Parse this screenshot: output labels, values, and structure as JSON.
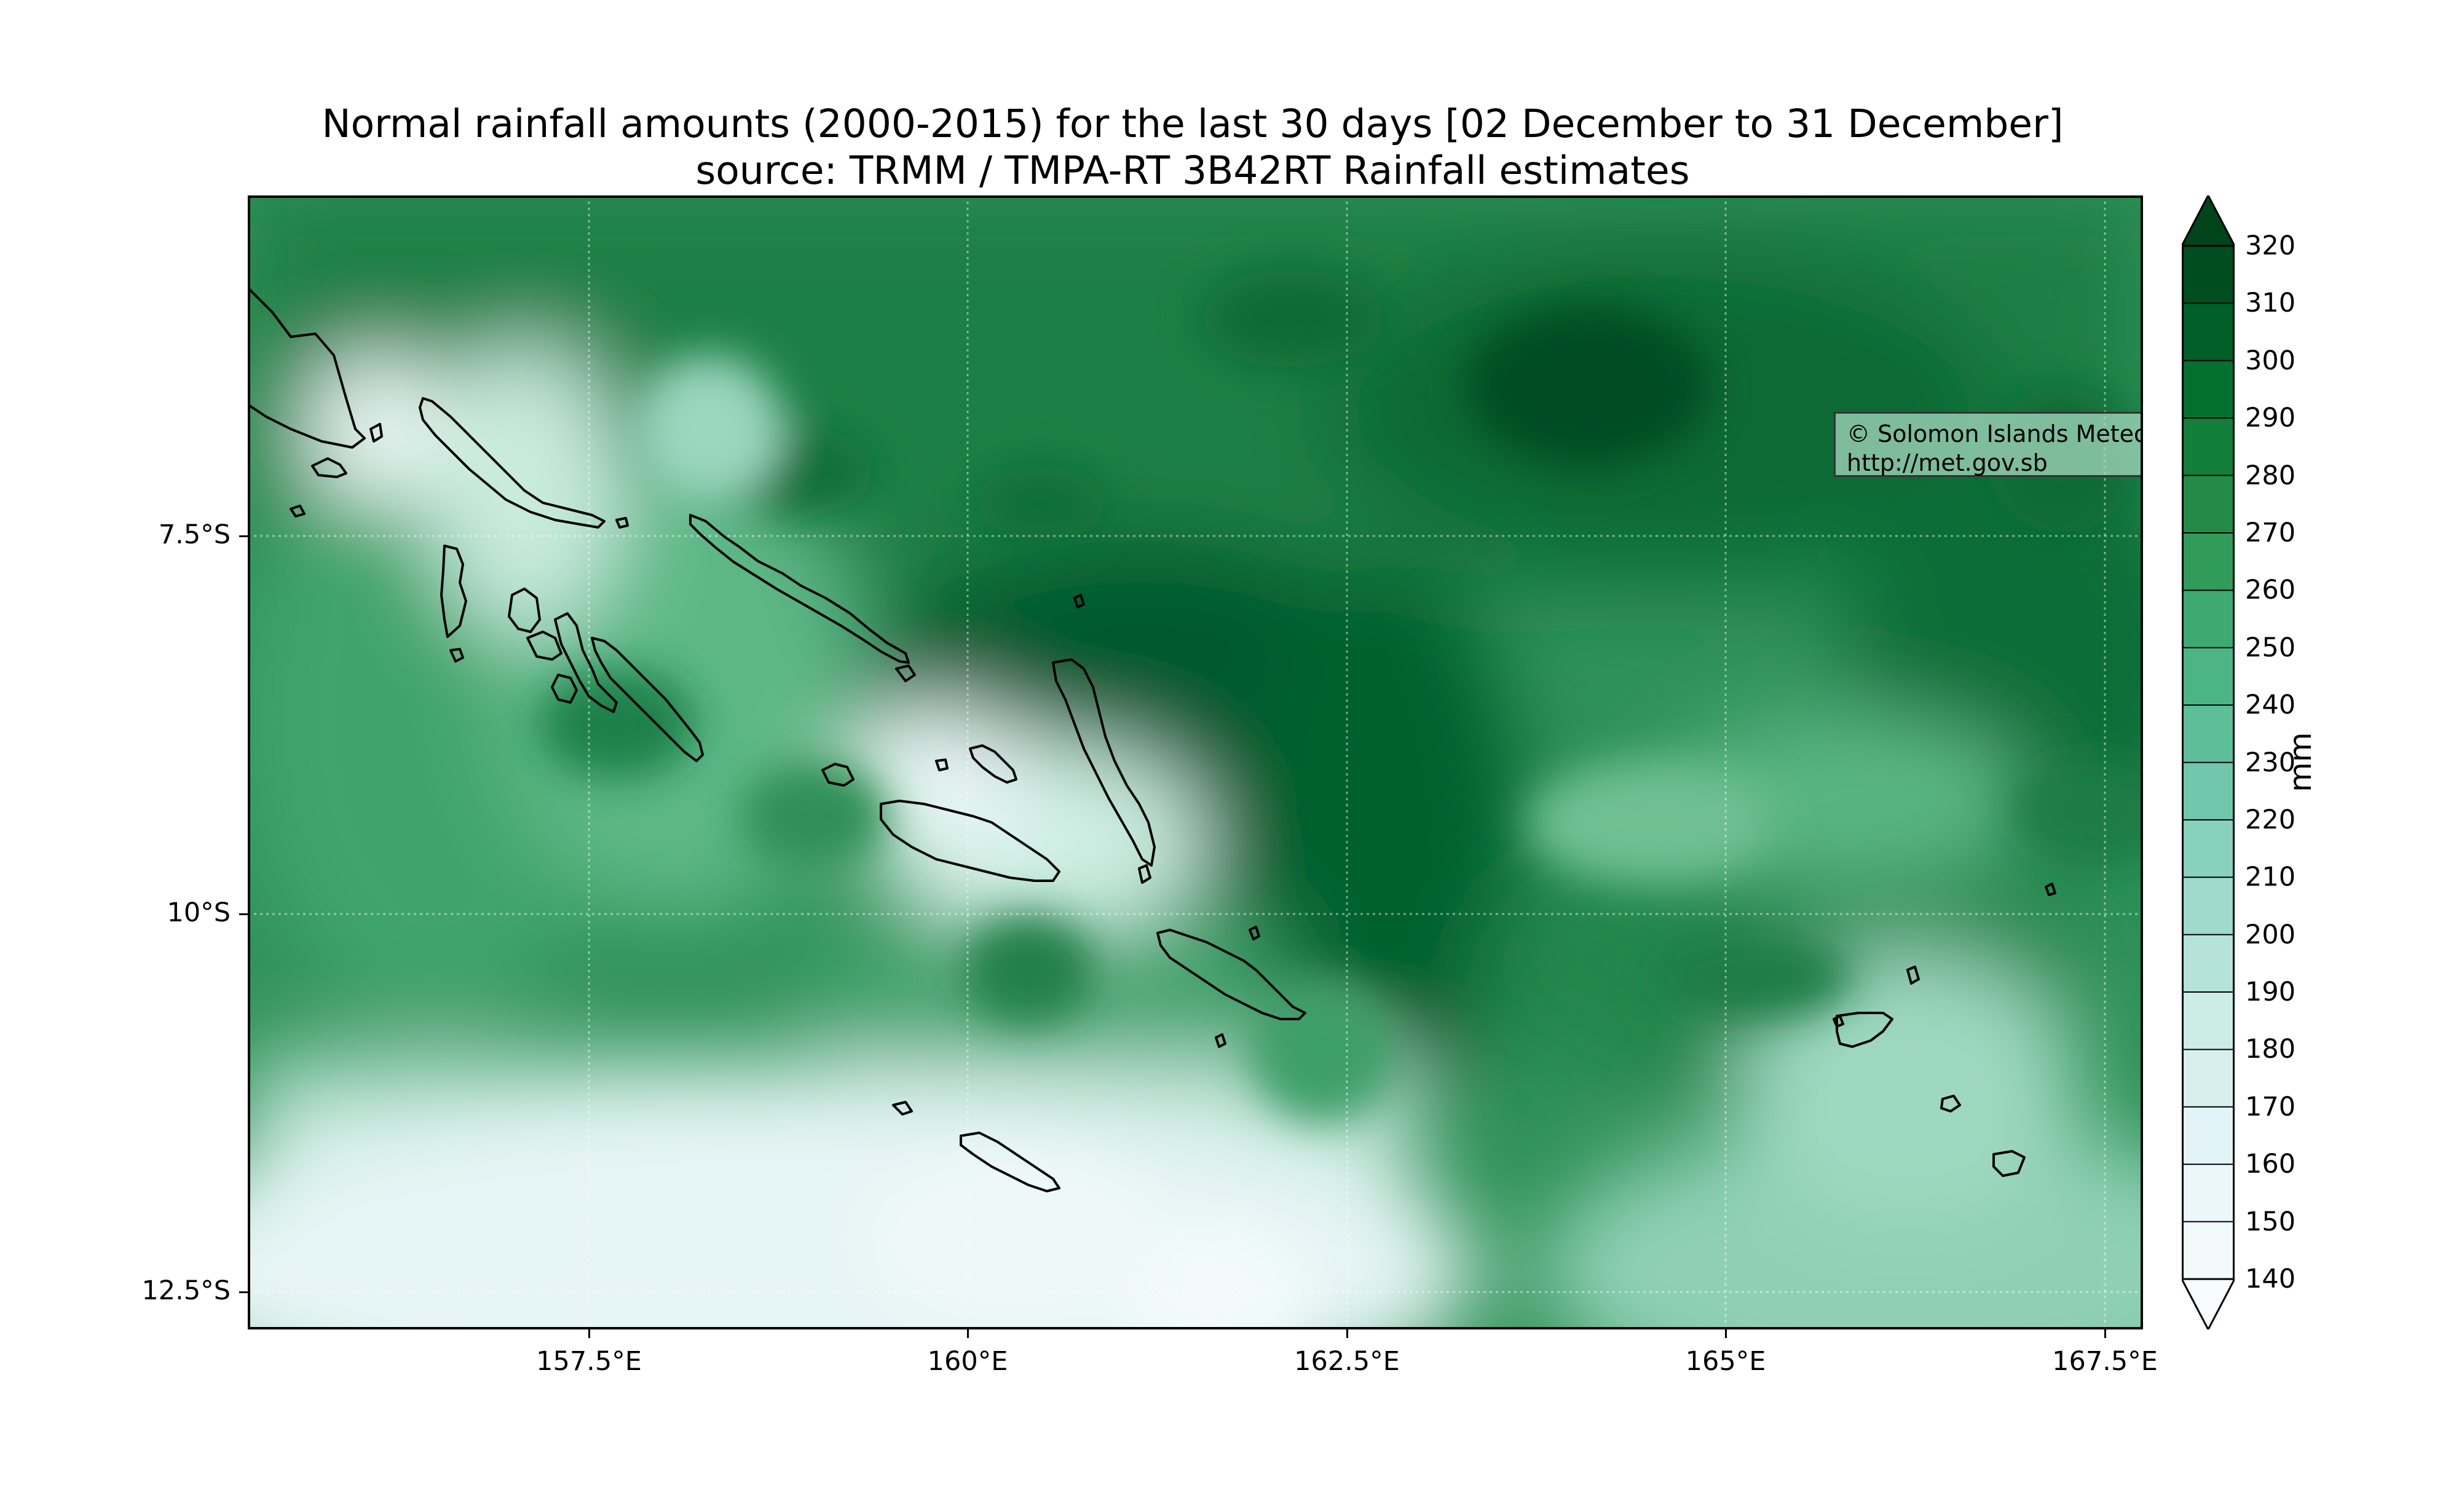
{
  "map": {
    "title_line1": "Normal rainfall amounts (2000-2015) for the last 30 days [02 December to 31 December]",
    "title_line2": "source: TRMM / TMPA-RT 3B42RT Rainfall estimates",
    "credit_line1": "© Solomon Islands Meteorological Services",
    "credit_line2": " http://met.gov.sb",
    "lat_ticks": [
      "7.5°S",
      "10°S",
      "12.5°S"
    ],
    "lon_ticks": [
      "157.5°E",
      "160°E",
      "162.5°E",
      "165°E",
      "167.5°E"
    ],
    "lon_extent": [
      155.25,
      167.75
    ],
    "lat_extent": [
      -12.75,
      -5.25
    ],
    "colorbar": {
      "unit": "mm",
      "levels": [
        "140",
        "150",
        "160",
        "170",
        "180",
        "190",
        "200",
        "210",
        "220",
        "230",
        "240",
        "250",
        "260",
        "270",
        "280",
        "290",
        "300",
        "310",
        "320"
      ],
      "low_color": "#f7fcfd",
      "high_color": "#00441b",
      "extend": "both"
    }
  }
}
